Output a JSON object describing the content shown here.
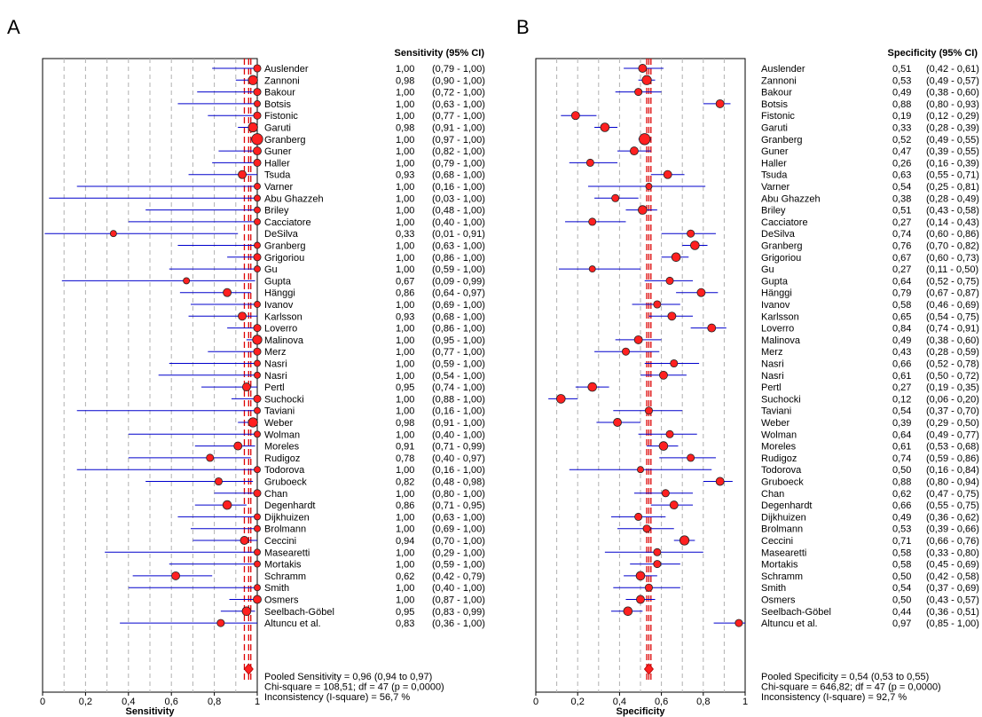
{
  "colors": {
    "ci_line": "#0000cc",
    "pooled_line": "#dd0000",
    "marker_fill": "#ff2020",
    "grid": "#b0b0b0"
  },
  "chart_data": [
    {
      "type": "forest",
      "panel_label": "A",
      "column_header": "Sensitivity (95% CI)",
      "xlabel": "Sensitivity",
      "xlim": [
        0,
        1
      ],
      "xticks": [
        "0",
        "0,2",
        "0,4",
        "0,6",
        "0,8",
        "1"
      ],
      "studies": [
        "Auslender",
        "Zannoni",
        "Bakour",
        "Botsis",
        "Fistonic",
        "Garuti",
        "Granberg",
        "Guner",
        "Haller",
        "Tsuda",
        "Varner",
        "Abu Ghazzeh",
        "Briley",
        "Cacciatore",
        "DeSilva",
        "Granberg",
        "Grigoriou",
        "Gu",
        "Gupta",
        "Hänggi",
        "Ivanov",
        "Karlsson",
        "Loverro",
        "Malinova",
        "Merz",
        "Nasri",
        "Nasri",
        "Pertl",
        "Suchocki",
        "Taviani",
        "Weber",
        "Wolman",
        "Moreles",
        "Rudigoz",
        "Todorova",
        "Gruboeck",
        "Chan",
        "Degenhardt",
        "Dijkhuizen",
        "Brolmann",
        "Ceccini",
        "Masearetti",
        "Mortakis",
        "Schramm",
        "Smith",
        "Osmers",
        "Seelbach-Göbel",
        "Altuncu et al."
      ],
      "value_labels": [
        "1,00",
        "0,98",
        "1,00",
        "1,00",
        "1,00",
        "0,98",
        "1,00",
        "1,00",
        "1,00",
        "0,93",
        "1,00",
        "1,00",
        "1,00",
        "1,00",
        "0,33",
        "1,00",
        "1,00",
        "1,00",
        "0,67",
        "0,86",
        "1,00",
        "0,93",
        "1,00",
        "1,00",
        "1,00",
        "1,00",
        "1,00",
        "0,95",
        "1,00",
        "1,00",
        "0,98",
        "1,00",
        "0,91",
        "0,78",
        "1,00",
        "0,82",
        "1,00",
        "0,86",
        "1,00",
        "1,00",
        "0,94",
        "1,00",
        "1,00",
        "0,62",
        "1,00",
        "1,00",
        "0,95",
        "0,83"
      ],
      "ci_labels": [
        "(0,79 - 1,00)",
        "(0,90 - 1,00)",
        "(0,72 - 1,00)",
        "(0,63 - 1,00)",
        "(0,77 - 1,00)",
        "(0,91 - 1,00)",
        "(0,97 - 1,00)",
        "(0,82 - 1,00)",
        "(0,79 - 1,00)",
        "(0,68 - 1,00)",
        "(0,16 - 1,00)",
        "(0,03 - 1,00)",
        "(0,48 - 1,00)",
        "(0,40 - 1,00)",
        "(0,01 - 0,91)",
        "(0,63 - 1,00)",
        "(0,86 - 1,00)",
        "(0,59 - 1,00)",
        "(0,09 - 0,99)",
        "(0,64 - 0,97)",
        "(0,69 - 1,00)",
        "(0,68 - 1,00)",
        "(0,86 - 1,00)",
        "(0,95 - 1,00)",
        "(0,77 - 1,00)",
        "(0,59 - 1,00)",
        "(0,54 - 1,00)",
        "(0,74 - 1,00)",
        "(0,88 - 1,00)",
        "(0,16 - 1,00)",
        "(0,91 - 1,00)",
        "(0,40 - 1,00)",
        "(0,71 - 0,99)",
        "(0,40 - 0,97)",
        "(0,16 - 1,00)",
        "(0,48 - 0,98)",
        "(0,80 - 1,00)",
        "(0,71 - 0,95)",
        "(0,63 - 1,00)",
        "(0,69 - 1,00)",
        "(0,70 - 1,00)",
        "(0,29 - 1,00)",
        "(0,59 - 1,00)",
        "(0,42 - 0,79)",
        "(0,40 - 1,00)",
        "(0,87 - 1,00)",
        "(0,83 - 0,99)",
        "(0,36 - 1,00)"
      ],
      "values": [
        1.0,
        0.98,
        1.0,
        1.0,
        1.0,
        0.98,
        1.0,
        1.0,
        1.0,
        0.93,
        1.0,
        1.0,
        1.0,
        1.0,
        0.33,
        1.0,
        1.0,
        1.0,
        0.67,
        0.86,
        1.0,
        0.93,
        1.0,
        1.0,
        1.0,
        1.0,
        1.0,
        0.95,
        1.0,
        1.0,
        0.98,
        1.0,
        0.91,
        0.78,
        1.0,
        0.82,
        1.0,
        0.86,
        1.0,
        1.0,
        0.94,
        1.0,
        1.0,
        0.62,
        1.0,
        1.0,
        0.95,
        0.83
      ],
      "ci_low": [
        0.79,
        0.9,
        0.72,
        0.63,
        0.77,
        0.91,
        0.97,
        0.82,
        0.79,
        0.68,
        0.16,
        0.03,
        0.48,
        0.4,
        0.01,
        0.63,
        0.86,
        0.59,
        0.09,
        0.64,
        0.69,
        0.68,
        0.86,
        0.95,
        0.77,
        0.59,
        0.54,
        0.74,
        0.88,
        0.16,
        0.91,
        0.4,
        0.71,
        0.4,
        0.16,
        0.48,
        0.8,
        0.71,
        0.63,
        0.69,
        0.7,
        0.29,
        0.59,
        0.42,
        0.4,
        0.87,
        0.83,
        0.36
      ],
      "ci_high": [
        1.0,
        1.0,
        1.0,
        1.0,
        1.0,
        1.0,
        1.0,
        1.0,
        1.0,
        1.0,
        1.0,
        1.0,
        1.0,
        1.0,
        0.91,
        1.0,
        1.0,
        1.0,
        0.99,
        0.97,
        1.0,
        1.0,
        1.0,
        1.0,
        1.0,
        1.0,
        1.0,
        1.0,
        1.0,
        1.0,
        1.0,
        1.0,
        0.99,
        0.97,
        1.0,
        0.98,
        1.0,
        0.95,
        1.0,
        1.0,
        1.0,
        1.0,
        1.0,
        0.79,
        1.0,
        1.0,
        0.99,
        1.0
      ],
      "weights": [
        2,
        5,
        2,
        1,
        2,
        5,
        9,
        3,
        2,
        3,
        1,
        1,
        1,
        1,
        1,
        1,
        2,
        1,
        1,
        3,
        1,
        3,
        2,
        5,
        2,
        1,
        1,
        3,
        2,
        1,
        5,
        1,
        3,
        2,
        1,
        2,
        2,
        4,
        1,
        1,
        3,
        1,
        1,
        3,
        1,
        3,
        4,
        2
      ],
      "pooled": {
        "estimate": 0.96,
        "ci_low": 0.94,
        "ci_high": 0.97
      },
      "footer": [
        "Pooled Sensitivity = 0,96 (0,94 to 0,97)",
        "Chi-square = 108,51; df =  47 (p = 0,0000)",
        "Inconsistency (I-square) = 56,7 %"
      ]
    },
    {
      "type": "forest",
      "panel_label": "B",
      "column_header": "Specificity (95% CI)",
      "xlabel": "Specificity",
      "xlim": [
        0,
        1
      ],
      "xticks": [
        "0",
        "0,2",
        "0,4",
        "0,6",
        "0,8",
        "1"
      ],
      "studies": [
        "Auslender",
        "Zannoni",
        "Bakour",
        "Botsis",
        "Fistonic",
        "Garuti",
        "Granberg",
        "Guner",
        "Haller",
        "Tsuda",
        "Varner",
        "Abu Ghazzeh",
        "Briley",
        "Cacciatore",
        "DeSilva",
        "Granberg",
        "Grigoriou",
        "Gu",
        "Gupta",
        "Hänggi",
        "Ivanov",
        "Karlsson",
        "Loverro",
        "Malinova",
        "Merz",
        "Nasri",
        "Nasri",
        "Pertl",
        "Suchocki",
        "Taviani",
        "Weber",
        "Wolman",
        "Moreles",
        "Rudigoz",
        "Todorova",
        "Gruboeck",
        "Chan",
        "Degenhardt",
        "Dijkhuizen",
        "Brolmann",
        "Ceccini",
        "Masearetti",
        "Mortakis",
        "Schramm",
        "Smith",
        "Osmers",
        "Seelbach-Göbel",
        "Altuncu et al."
      ],
      "value_labels": [
        "0,51",
        "0,53",
        "0,49",
        "0,88",
        "0,19",
        "0,33",
        "0,52",
        "0,47",
        "0,26",
        "0,63",
        "0,54",
        "0,38",
        "0,51",
        "0,27",
        "0,74",
        "0,76",
        "0,67",
        "0,27",
        "0,64",
        "0,79",
        "0,58",
        "0,65",
        "0,84",
        "0,49",
        "0,43",
        "0,66",
        "0,61",
        "0,27",
        "0,12",
        "0,54",
        "0,39",
        "0,64",
        "0,61",
        "0,74",
        "0,50",
        "0,88",
        "0,62",
        "0,66",
        "0,49",
        "0,53",
        "0,71",
        "0,58",
        "0,58",
        "0,50",
        "0,54",
        "0,50",
        "0,44",
        "0,97"
      ],
      "ci_labels": [
        "(0,42 - 0,61)",
        "(0,49 - 0,57)",
        "(0,38 - 0,60)",
        "(0,80 - 0,93)",
        "(0,12 - 0,29)",
        "(0,28 - 0,39)",
        "(0,49 - 0,55)",
        "(0,39 - 0,55)",
        "(0,16 - 0,39)",
        "(0,55 - 0,71)",
        "(0,25 - 0,81)",
        "(0,28 - 0,49)",
        "(0,43 - 0,58)",
        "(0,14 - 0,43)",
        "(0,60 - 0,86)",
        "(0,70 - 0,82)",
        "(0,60 - 0,73)",
        "(0,11 - 0,50)",
        "(0,52 - 0,75)",
        "(0,67 - 0,87)",
        "(0,46 - 0,69)",
        "(0,54 - 0,75)",
        "(0,74 - 0,91)",
        "(0,38 - 0,60)",
        "(0,28 - 0,59)",
        "(0,52 - 0,78)",
        "(0,50 - 0,72)",
        "(0,19 - 0,35)",
        "(0,06 - 0,20)",
        "(0,37 - 0,70)",
        "(0,29 - 0,50)",
        "(0,49 - 0,77)",
        "(0,53 - 0,68)",
        "(0,59 - 0,86)",
        "(0,16 - 0,84)",
        "(0,80 - 0,94)",
        "(0,47 - 0,75)",
        "(0,55 - 0,75)",
        "(0,36 - 0,62)",
        "(0,39 - 0,66)",
        "(0,66 - 0,76)",
        "(0,33 - 0,80)",
        "(0,45 - 0,69)",
        "(0,42 - 0,58)",
        "(0,37 - 0,69)",
        "(0,43 - 0,57)",
        "(0,36 - 0,51)",
        "(0,85 - 1,00)"
      ],
      "values": [
        0.51,
        0.53,
        0.49,
        0.88,
        0.19,
        0.33,
        0.52,
        0.47,
        0.26,
        0.63,
        0.54,
        0.38,
        0.51,
        0.27,
        0.74,
        0.76,
        0.67,
        0.27,
        0.64,
        0.79,
        0.58,
        0.65,
        0.84,
        0.49,
        0.43,
        0.66,
        0.61,
        0.27,
        0.12,
        0.54,
        0.39,
        0.64,
        0.61,
        0.74,
        0.5,
        0.88,
        0.62,
        0.66,
        0.49,
        0.53,
        0.71,
        0.58,
        0.58,
        0.5,
        0.54,
        0.5,
        0.44,
        0.97
      ],
      "ci_low": [
        0.42,
        0.49,
        0.38,
        0.8,
        0.12,
        0.28,
        0.49,
        0.39,
        0.16,
        0.55,
        0.25,
        0.28,
        0.43,
        0.14,
        0.6,
        0.7,
        0.6,
        0.11,
        0.52,
        0.67,
        0.46,
        0.54,
        0.74,
        0.38,
        0.28,
        0.52,
        0.5,
        0.19,
        0.06,
        0.37,
        0.29,
        0.49,
        0.53,
        0.59,
        0.16,
        0.8,
        0.47,
        0.55,
        0.36,
        0.39,
        0.66,
        0.33,
        0.45,
        0.42,
        0.37,
        0.43,
        0.36,
        0.85
      ],
      "ci_high": [
        0.61,
        0.57,
        0.6,
        0.93,
        0.29,
        0.39,
        0.55,
        0.55,
        0.39,
        0.71,
        0.81,
        0.49,
        0.58,
        0.43,
        0.86,
        0.82,
        0.73,
        0.5,
        0.75,
        0.87,
        0.69,
        0.75,
        0.91,
        0.6,
        0.59,
        0.78,
        0.72,
        0.35,
        0.2,
        0.7,
        0.5,
        0.77,
        0.68,
        0.86,
        0.84,
        0.94,
        0.75,
        0.75,
        0.62,
        0.66,
        0.76,
        0.8,
        0.69,
        0.58,
        0.69,
        0.57,
        0.51,
        1.0
      ],
      "weights": [
        3,
        5,
        2,
        3,
        3,
        4,
        9,
        3,
        2,
        3,
        1,
        2,
        4,
        2,
        2,
        4,
        4,
        1,
        2,
        3,
        2,
        3,
        3,
        3,
        2,
        2,
        3,
        4,
        4,
        2,
        3,
        2,
        4,
        2,
        1,
        3,
        2,
        3,
        2,
        2,
        5,
        2,
        2,
        4,
        2,
        3,
        4,
        2
      ],
      "pooled": {
        "estimate": 0.54,
        "ci_low": 0.53,
        "ci_high": 0.55
      },
      "footer": [
        "Pooled Specificity = 0,54 (0,53 to 0,55)",
        "Chi-square = 646,82; df =  47 (p = 0,0000)",
        "Inconsistency (I-square) = 92,7 %"
      ]
    }
  ]
}
